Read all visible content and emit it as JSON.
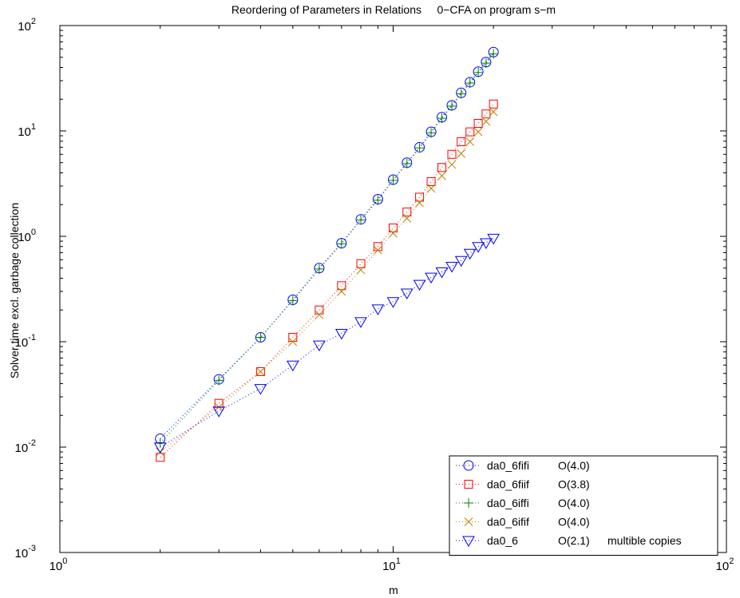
{
  "chart_data": {
    "type": "scatter",
    "title": "Reordering of Parameters in Relations     0−CFA on program s−m",
    "xlabel": "m",
    "ylabel": "Solver time excl. garbage collection",
    "xscale": "log",
    "yscale": "log",
    "xlim": [
      1,
      100
    ],
    "ylim": [
      0.001,
      100
    ],
    "grid": false,
    "legend_position": "bottom-right",
    "x_ticks": [
      {
        "base": "10",
        "exp": "0",
        "value": 1
      },
      {
        "base": "10",
        "exp": "1",
        "value": 10
      },
      {
        "base": "10",
        "exp": "2",
        "value": 100
      }
    ],
    "y_ticks": [
      {
        "base": "10",
        "exp": "-3",
        "value": 0.001
      },
      {
        "base": "10",
        "exp": "-2",
        "value": 0.01
      },
      {
        "base": "10",
        "exp": "-1",
        "value": 0.1
      },
      {
        "base": "10",
        "exp": "0",
        "value": 1
      },
      {
        "base": "10",
        "exp": "1",
        "value": 10
      },
      {
        "base": "10",
        "exp": "2",
        "value": 100
      }
    ],
    "x": [
      2,
      3,
      4,
      5,
      6,
      7,
      8,
      9,
      10,
      11,
      12,
      13,
      14,
      15,
      16,
      17,
      18,
      19,
      20
    ],
    "series": [
      {
        "name": "da0_6fifi",
        "complexity": "O(4.0)",
        "note": "",
        "marker": "circle",
        "color": "#0000ff",
        "values": [
          0.012,
          0.044,
          0.11,
          0.25,
          0.5,
          0.86,
          1.45,
          2.25,
          3.45,
          5.0,
          7.0,
          9.8,
          13.5,
          17.5,
          23.0,
          29.0,
          36.5,
          45.0,
          56.0
        ]
      },
      {
        "name": "da0_6fiif",
        "complexity": "O(3.8)",
        "note": "",
        "marker": "square",
        "color": "#ff0000",
        "values": [
          0.008,
          0.026,
          0.052,
          0.11,
          0.2,
          0.34,
          0.55,
          0.8,
          1.2,
          1.7,
          2.35,
          3.3,
          4.5,
          6.0,
          7.9,
          9.8,
          11.8,
          14.5,
          18.0
        ]
      },
      {
        "name": "da0_6iffi",
        "complexity": "O(4.0)",
        "note": "",
        "marker": "plus",
        "color": "#008000",
        "values": [
          0.011,
          0.043,
          0.11,
          0.245,
          0.49,
          0.85,
          1.43,
          2.2,
          3.4,
          4.9,
          6.9,
          9.6,
          13.2,
          17.2,
          22.5,
          28.5,
          35.8,
          44.0,
          54.0
        ]
      },
      {
        "name": "da0_6ifif",
        "complexity": "O(4.0)",
        "note": "",
        "marker": "cross",
        "color": "#bf8000",
        "values": [
          0.009,
          0.024,
          0.052,
          0.1,
          0.18,
          0.3,
          0.48,
          0.74,
          1.07,
          1.48,
          2.08,
          2.85,
          3.75,
          4.8,
          6.1,
          7.9,
          9.8,
          12.3,
          15.2
        ]
      },
      {
        "name": "da0_6",
        "complexity": "O(2.1)",
        "note": "multible copies",
        "marker": "triangle",
        "color": "#0000ff",
        "values": [
          0.01,
          0.022,
          0.036,
          0.06,
          0.093,
          0.12,
          0.155,
          0.205,
          0.24,
          0.29,
          0.35,
          0.41,
          0.46,
          0.52,
          0.59,
          0.69,
          0.8,
          0.87,
          0.96
        ]
      }
    ]
  }
}
